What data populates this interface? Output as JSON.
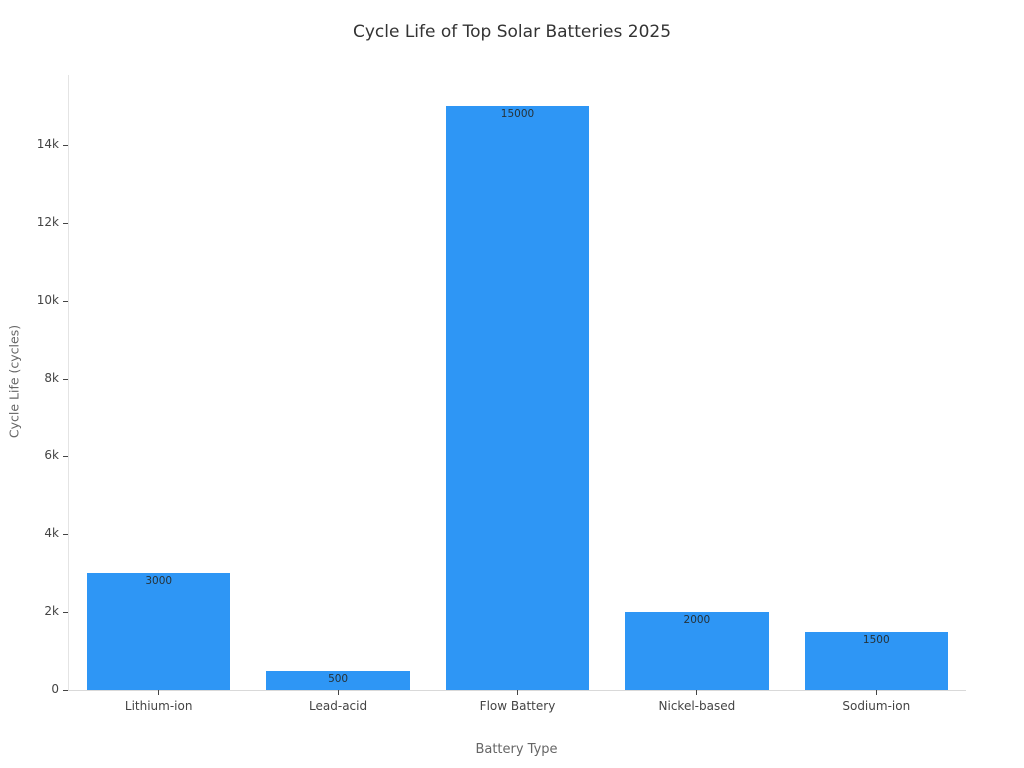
{
  "chart_data": {
    "type": "bar",
    "title": "Cycle Life of Top Solar Batteries 2025",
    "xlabel": "Battery Type",
    "ylabel": "Cycle Life (cycles)",
    "categories": [
      "Lithium-ion",
      "Lead-acid",
      "Flow Battery",
      "Nickel-based",
      "Sodium-ion"
    ],
    "values": [
      3000,
      500,
      15000,
      2000,
      1500
    ],
    "value_labels": [
      "3000",
      "500",
      "15000",
      "2000",
      "1500"
    ],
    "label_position": "inside-top",
    "bar_color": "#2E96F5",
    "value_label_color": "#263238",
    "ylim": [
      0,
      15800
    ],
    "yticks": [
      0,
      2000,
      4000,
      6000,
      8000,
      10000,
      12000,
      14000
    ],
    "ytick_labels": [
      "0",
      "2k",
      "4k",
      "6k",
      "8k",
      "10k",
      "12k",
      "14k"
    ],
    "grid": false,
    "legend": false,
    "background": "#ffffff"
  }
}
